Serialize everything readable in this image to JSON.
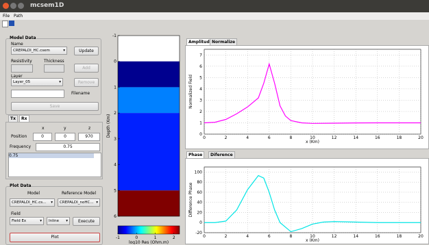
{
  "window": {
    "title": "mcsem1D",
    "menu": [
      "File",
      "Path"
    ]
  },
  "model_data": {
    "title": "Model Data",
    "name_label": "Name",
    "name_value": "CREPALDI_HC.csem",
    "update": "Update",
    "resistivity": "Resistivity",
    "thickness": "Thickness",
    "add": "Add",
    "layer_label": "Layer",
    "layer_value": "Layer_05",
    "remove": "Remove",
    "filename": "Filename",
    "save": "Save"
  },
  "txrx": {
    "tabs": [
      "Tx",
      "Rx"
    ],
    "cols": [
      "x",
      "y",
      "z"
    ],
    "position_label": "Position",
    "position": [
      "0",
      "0",
      "970"
    ],
    "frequency_label": "Frequency",
    "frequency": "0.75",
    "list": [
      "0.75"
    ]
  },
  "plot_data": {
    "title": "Plot Data",
    "model_label": "Model",
    "ref_label": "Reference Model",
    "model_value": "CREPALDI_HC.cs...",
    "ref_value": "CREPALDI_noHC...",
    "field_label": "Field",
    "field_value": "Field Ex",
    "mode_value": "Inline",
    "execute": "Execute",
    "plot": "Plot"
  },
  "tabs_top": [
    "Amplitude",
    "Normalize"
  ],
  "tabs_bottom": [
    "Phase",
    "Diference"
  ],
  "chart_data": [
    {
      "type": "line",
      "ylabel": "Normalized Field",
      "xlabel": "x (Km)",
      "grid": true,
      "x": [
        0,
        1,
        2,
        3,
        4,
        5,
        5.5,
        6,
        6.5,
        7,
        7.5,
        8,
        9,
        10,
        12,
        14,
        16,
        18,
        20
      ],
      "series": [
        {
          "color": "#ff00ff",
          "values": [
            1.0,
            1.05,
            1.3,
            1.8,
            2.4,
            3.2,
            4.5,
            6.2,
            4.5,
            2.5,
            1.6,
            1.2,
            1.0,
            0.95,
            0.97,
            0.99,
            1.0,
            1.0,
            1.0
          ]
        }
      ],
      "xlim": [
        0,
        20
      ],
      "xticks": [
        0,
        2,
        4,
        6,
        8,
        10,
        12,
        14,
        16,
        18,
        20
      ],
      "ylim": [
        0,
        7.5
      ],
      "yticks": [
        0,
        1,
        2,
        3,
        4,
        5,
        6,
        7
      ]
    },
    {
      "type": "line",
      "ylabel": "Difference Phase",
      "xlabel": "x (Km)",
      "grid": true,
      "x": [
        0,
        1,
        2,
        3,
        4,
        5,
        5.5,
        6,
        6.5,
        7,
        8,
        9,
        10,
        11,
        12,
        14,
        16,
        20
      ],
      "series": [
        {
          "color": "#00e5e5",
          "values": [
            0,
            0,
            3,
            25,
            65,
            93,
            88,
            60,
            25,
            0,
            -18,
            -12,
            -3,
            1,
            2,
            1,
            0,
            0
          ]
        }
      ],
      "xlim": [
        0,
        20
      ],
      "xticks": [
        0,
        2,
        4,
        6,
        8,
        10,
        12,
        14,
        16,
        18,
        20
      ],
      "ylim": [
        -20,
        110
      ],
      "yticks": [
        -20,
        0,
        20,
        40,
        60,
        80,
        100
      ]
    },
    {
      "type": "layers",
      "ylabel": "Depth (Km)",
      "ylim": [
        -1,
        6
      ],
      "yticks": [
        -1,
        0,
        1,
        2,
        3,
        4,
        5,
        6
      ],
      "layers": [
        {
          "top": -1,
          "bottom": 0,
          "color": "#ffffff"
        },
        {
          "top": 0,
          "bottom": 1,
          "color": "#00008f"
        },
        {
          "top": 1,
          "bottom": 2,
          "color": "#0080ff"
        },
        {
          "top": 2,
          "bottom": 5,
          "color": "#0020ff"
        },
        {
          "top": 5,
          "bottom": 6,
          "color": "#800000"
        }
      ],
      "clim": [
        -1,
        2.3
      ],
      "cticks": [
        -1,
        0,
        1,
        2
      ],
      "clabel": "log10 Res (Ohm.m)"
    }
  ]
}
